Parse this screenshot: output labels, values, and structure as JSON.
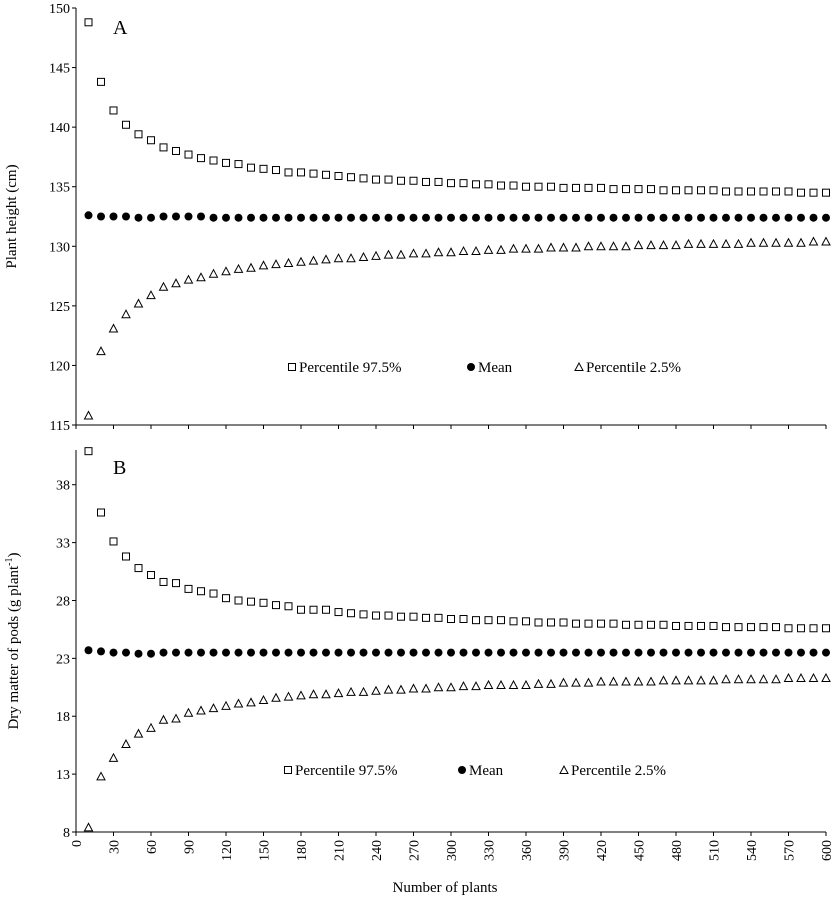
{
  "chart_data": [
    {
      "panel_label": "A",
      "type": "scatter",
      "ylabel": "Plant height (cm)",
      "xlim": [
        0,
        600
      ],
      "ylim": [
        115,
        150
      ],
      "yticks": [
        115,
        120,
        125,
        130,
        135,
        140,
        145,
        150
      ],
      "grid": false,
      "legend_position": "center",
      "x": [
        10,
        20,
        30,
        40,
        50,
        60,
        70,
        80,
        90,
        100,
        110,
        120,
        130,
        140,
        150,
        160,
        170,
        180,
        190,
        200,
        210,
        220,
        230,
        240,
        250,
        260,
        270,
        280,
        290,
        300,
        310,
        320,
        330,
        340,
        350,
        360,
        370,
        380,
        390,
        400,
        410,
        420,
        430,
        440,
        450,
        460,
        470,
        480,
        490,
        500,
        510,
        520,
        530,
        540,
        550,
        560,
        570,
        580,
        590,
        600
      ],
      "series": [
        {
          "name": "Percentile 97.5%",
          "marker": "open-square",
          "values": [
            148.8,
            143.8,
            141.4,
            140.2,
            139.4,
            138.9,
            138.3,
            138.0,
            137.7,
            137.4,
            137.2,
            137.0,
            136.9,
            136.6,
            136.5,
            136.4,
            136.2,
            136.2,
            136.1,
            136.0,
            135.9,
            135.8,
            135.7,
            135.6,
            135.6,
            135.5,
            135.5,
            135.4,
            135.4,
            135.3,
            135.3,
            135.2,
            135.2,
            135.1,
            135.1,
            135.0,
            135.0,
            135.0,
            134.9,
            134.9,
            134.9,
            134.9,
            134.8,
            134.8,
            134.8,
            134.8,
            134.7,
            134.7,
            134.7,
            134.7,
            134.7,
            134.6,
            134.6,
            134.6,
            134.6,
            134.6,
            134.6,
            134.5,
            134.5,
            134.5
          ]
        },
        {
          "name": "Mean",
          "marker": "filled-circle",
          "values": [
            132.6,
            132.5,
            132.5,
            132.5,
            132.4,
            132.4,
            132.5,
            132.5,
            132.5,
            132.5,
            132.4,
            132.4,
            132.4,
            132.4,
            132.4,
            132.4,
            132.4,
            132.4,
            132.4,
            132.4,
            132.4,
            132.4,
            132.4,
            132.4,
            132.4,
            132.4,
            132.4,
            132.4,
            132.4,
            132.4,
            132.4,
            132.4,
            132.4,
            132.4,
            132.4,
            132.4,
            132.4,
            132.4,
            132.4,
            132.4,
            132.4,
            132.4,
            132.4,
            132.4,
            132.4,
            132.4,
            132.4,
            132.4,
            132.4,
            132.4,
            132.4,
            132.4,
            132.4,
            132.4,
            132.4,
            132.4,
            132.4,
            132.4,
            132.4,
            132.4
          ]
        },
        {
          "name": "Percentile 2.5%",
          "marker": "open-triangle",
          "values": [
            115.8,
            121.2,
            123.1,
            124.3,
            125.2,
            125.9,
            126.6,
            126.9,
            127.2,
            127.4,
            127.7,
            127.9,
            128.1,
            128.2,
            128.4,
            128.5,
            128.6,
            128.7,
            128.8,
            128.9,
            129.0,
            129.0,
            129.1,
            129.2,
            129.3,
            129.3,
            129.4,
            129.4,
            129.5,
            129.5,
            129.6,
            129.6,
            129.7,
            129.7,
            129.8,
            129.8,
            129.8,
            129.9,
            129.9,
            129.9,
            130.0,
            130.0,
            130.0,
            130.0,
            130.1,
            130.1,
            130.1,
            130.1,
            130.2,
            130.2,
            130.2,
            130.2,
            130.2,
            130.3,
            130.3,
            130.3,
            130.3,
            130.3,
            130.4,
            130.4
          ]
        }
      ]
    },
    {
      "panel_label": "B",
      "type": "scatter",
      "ylabel": "Dry matter of pods (g plant",
      "ylabel_superscript": "-1",
      "ylabel_suffix": ")",
      "xlabel": "Number of plants",
      "xlim": [
        0,
        600
      ],
      "ylim": [
        8,
        41
      ],
      "yticks": [
        8,
        13,
        18,
        23,
        28,
        33,
        38
      ],
      "xticks": [
        0,
        30,
        60,
        90,
        120,
        150,
        180,
        210,
        240,
        270,
        300,
        330,
        360,
        390,
        420,
        450,
        480,
        510,
        540,
        570,
        600
      ],
      "grid": false,
      "legend_position": "center-bottom",
      "x": [
        10,
        20,
        30,
        40,
        50,
        60,
        70,
        80,
        90,
        100,
        110,
        120,
        130,
        140,
        150,
        160,
        170,
        180,
        190,
        200,
        210,
        220,
        230,
        240,
        250,
        260,
        270,
        280,
        290,
        300,
        310,
        320,
        330,
        340,
        350,
        360,
        370,
        380,
        390,
        400,
        410,
        420,
        430,
        440,
        450,
        460,
        470,
        480,
        490,
        500,
        510,
        520,
        530,
        540,
        550,
        560,
        570,
        580,
        590,
        600
      ],
      "series": [
        {
          "name": "Percentile 97.5%",
          "marker": "open-square",
          "values": [
            40.9,
            35.6,
            33.1,
            31.8,
            30.8,
            30.2,
            29.6,
            29.5,
            29.0,
            28.8,
            28.6,
            28.2,
            28.0,
            27.9,
            27.8,
            27.6,
            27.5,
            27.2,
            27.2,
            27.2,
            27.0,
            26.9,
            26.8,
            26.7,
            26.7,
            26.6,
            26.6,
            26.5,
            26.5,
            26.4,
            26.4,
            26.3,
            26.3,
            26.3,
            26.2,
            26.2,
            26.1,
            26.1,
            26.1,
            26.0,
            26.0,
            26.0,
            26.0,
            25.9,
            25.9,
            25.9,
            25.9,
            25.8,
            25.8,
            25.8,
            25.8,
            25.7,
            25.7,
            25.7,
            25.7,
            25.7,
            25.6,
            25.6,
            25.6,
            25.6
          ]
        },
        {
          "name": "Mean",
          "marker": "filled-circle",
          "values": [
            23.7,
            23.6,
            23.5,
            23.5,
            23.4,
            23.4,
            23.5,
            23.5,
            23.5,
            23.5,
            23.5,
            23.5,
            23.5,
            23.5,
            23.5,
            23.5,
            23.5,
            23.5,
            23.5,
            23.5,
            23.5,
            23.5,
            23.5,
            23.5,
            23.5,
            23.5,
            23.5,
            23.5,
            23.5,
            23.5,
            23.5,
            23.5,
            23.5,
            23.5,
            23.5,
            23.5,
            23.5,
            23.5,
            23.5,
            23.5,
            23.5,
            23.5,
            23.5,
            23.5,
            23.5,
            23.5,
            23.5,
            23.5,
            23.5,
            23.5,
            23.5,
            23.5,
            23.5,
            23.5,
            23.5,
            23.5,
            23.5,
            23.5,
            23.5,
            23.5
          ]
        },
        {
          "name": "Percentile 2.5%",
          "marker": "open-triangle",
          "values": [
            8.4,
            12.8,
            14.4,
            15.6,
            16.5,
            17.0,
            17.7,
            17.8,
            18.3,
            18.5,
            18.7,
            18.9,
            19.1,
            19.2,
            19.4,
            19.6,
            19.7,
            19.8,
            19.9,
            19.9,
            20.0,
            20.1,
            20.1,
            20.2,
            20.3,
            20.3,
            20.4,
            20.4,
            20.5,
            20.5,
            20.6,
            20.6,
            20.7,
            20.7,
            20.7,
            20.7,
            20.8,
            20.8,
            20.9,
            20.9,
            20.9,
            21.0,
            21.0,
            21.0,
            21.0,
            21.0,
            21.1,
            21.1,
            21.1,
            21.1,
            21.1,
            21.2,
            21.2,
            21.2,
            21.2,
            21.2,
            21.3,
            21.3,
            21.3,
            21.3
          ]
        }
      ]
    }
  ]
}
